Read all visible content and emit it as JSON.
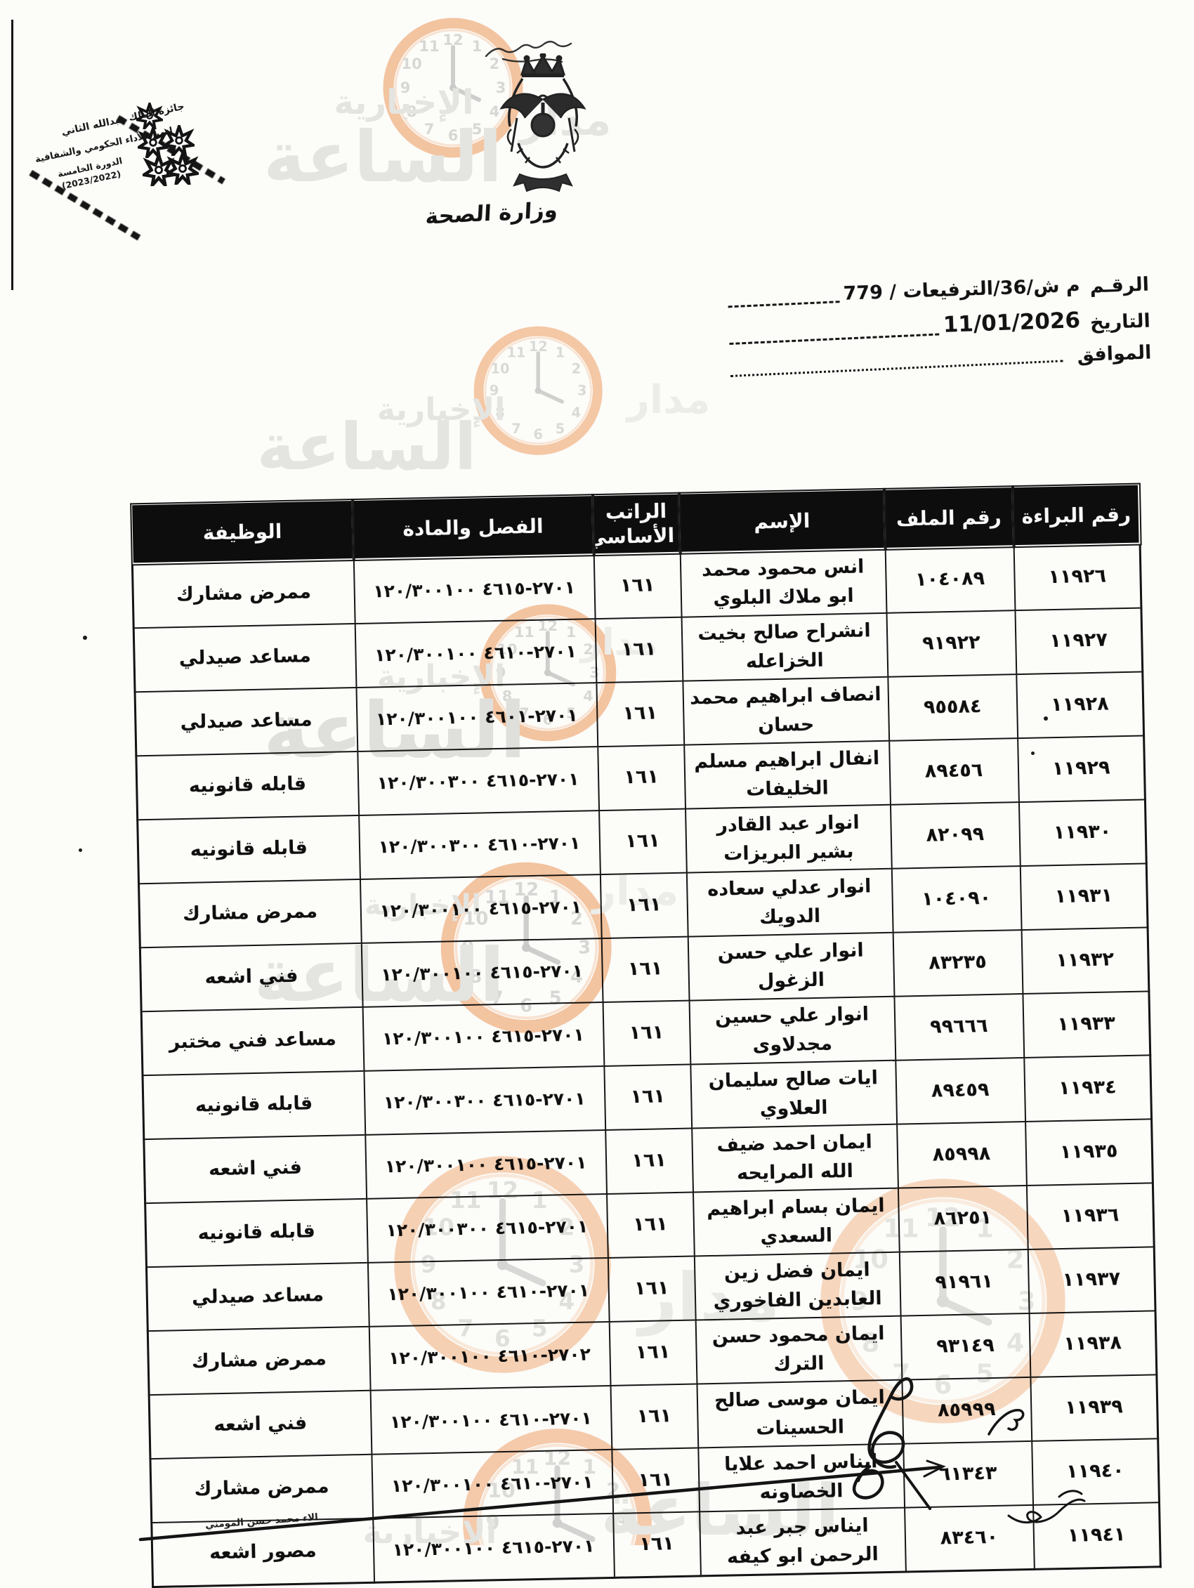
{
  "letterhead": {
    "emblem": "jordan-coat-of-arms",
    "bismillah_calligraphy": "calligraphic-header-flourish",
    "ministry_calligraphy": "وزارة الصحة",
    "award_stamp": {
      "lines": [
        "جائزة الملك عبدالله الثاني",
        "لتميز الأداء الحكومي والشفافية",
        "الدورة الخامسة",
        "(2023/2022)"
      ]
    }
  },
  "reference": {
    "number_label": "الرقـم",
    "number_value": "م ش/36/الترفيعات / 779",
    "date_label": "التاريخ",
    "date_value": "11/01/2026",
    "corresponding_label": "الموافق",
    "corresponding_value": ""
  },
  "watermark": {
    "words": [
      "مدار",
      "الساعة",
      "الإخبارية"
    ],
    "clock_numbers": [
      "12",
      "1",
      "2",
      "3",
      "4",
      "5",
      "6",
      "7",
      "8",
      "9",
      "10",
      "11"
    ],
    "ring_color": "#f6c19b",
    "text_color": "#e7e7e7"
  },
  "table": {
    "columns": [
      "رقم البراءة",
      "رقم الملف",
      "الإسم",
      "الراتب الأساسي",
      "الفصل والمادة",
      "الوظيفة"
    ],
    "rows": [
      {
        "baraa": "١١٩٢٦",
        "file": "١٠٤٠٨٩",
        "name": "انس محمود محمد ابو ملاك البلوي",
        "salary": "١٦١",
        "article": "٢٧٠١-٤٦١٥ ١٢٠/٣٠٠١٠٠",
        "job": "ممرض مشارك"
      },
      {
        "baraa": "١١٩٢٧",
        "file": "٩١٩٢٢",
        "name": "انشراح صالح بخيت الخزاعله",
        "salary": "١٦١",
        "article": "٢٧٠١-٤٦١٠ ١٢٠/٣٠٠١٠٠",
        "job": "مساعد صيدلي"
      },
      {
        "baraa": "١١٩٢٨",
        "file": "٩٥٥٨٤",
        "name": "انصاف ابراهيم محمد حسان",
        "salary": "١٦١",
        "article": "٢٧٠١-٤٦٠١ ١٢٠/٣٠٠١٠٠",
        "job": "مساعد صيدلي"
      },
      {
        "baraa": "١١٩٢٩",
        "file": "٨٩٤٥٦",
        "name": "انفال ابراهيم مسلم الخليفات",
        "salary": "١٦١",
        "article": "٢٧٠١-٤٦١٥ ١٢٠/٣٠٠٣٠٠",
        "job": "قابله قانونيه"
      },
      {
        "baraa": "١١٩٣٠",
        "file": "٨٢٠٩٩",
        "name": "انوار عبد القادر بشير البريزات",
        "salary": "١٦١",
        "article": "٢٧٠١-٤٦١٠ ١٢٠/٣٠٠٣٠٠",
        "job": "قابله قانونيه"
      },
      {
        "baraa": "١١٩٣١",
        "file": "١٠٤٠٩٠",
        "name": "انوار عدلي سعاده الدويك",
        "salary": "١٦١",
        "article": "٢٧٠١-٤٦١٥ ١٢٠/٣٠٠١٠٠",
        "job": "ممرض مشارك"
      },
      {
        "baraa": "١١٩٣٢",
        "file": "٨٣٢٣٥",
        "name": "انوار علي حسن الزغول",
        "salary": "١٦١",
        "article": "٢٧٠١-٤٦١٥ ١٢٠/٣٠٠١٠٠",
        "job": "فني اشعه"
      },
      {
        "baraa": "١١٩٣٣",
        "file": "٩٩٦٦٦",
        "name": "انوار علي حسين مجدلاوى",
        "salary": "١٦١",
        "article": "٢٧٠١-٤٦١٥ ١٢٠/٣٠٠١٠٠",
        "job": "مساعد فني مختبر"
      },
      {
        "baraa": "١١٩٣٤",
        "file": "٨٩٤٥٩",
        "name": "ايات صالح سليمان العلاوي",
        "salary": "١٦١",
        "article": "٢٧٠١-٤٦١٥ ١٢٠/٣٠٠٣٠٠",
        "job": "قابله قانونيه"
      },
      {
        "baraa": "١١٩٣٥",
        "file": "٨٥٩٩٨",
        "name": "ايمان احمد ضيف الله المرايحه",
        "salary": "١٦١",
        "article": "٢٧٠١-٤٦١٥ ١٢٠/٣٠٠١٠٠",
        "job": "فني اشعه"
      },
      {
        "baraa": "١١٩٣٦",
        "file": "٨٦٢٥١",
        "name": "ايمان بسام ابراهيم السعدي",
        "salary": "١٦١",
        "article": "٢٧٠١-٤٦١٥ ١٢٠/٣٠٠٣٠٠",
        "job": "قابله قانونيه"
      },
      {
        "baraa": "١١٩٣٧",
        "file": "٩١٩٦١",
        "name": "ايمان فضل زين العابدين الفاخوري",
        "salary": "١٦١",
        "article": "٢٧٠١-٤٦١٠ ١٢٠/٣٠٠١٠٠",
        "job": "مساعد صيدلي"
      },
      {
        "baraa": "١١٩٣٨",
        "file": "٩٣١٤٩",
        "name": "ايمان محمود حسن الترك",
        "salary": "١٦١",
        "article": "٢٧٠٢-٤٦١٠ ١٢٠/٣٠٠١٠٠",
        "job": "ممرض مشارك"
      },
      {
        "baraa": "١١٩٣٩",
        "file": "٨٥٩٩٩",
        "name": "ايمان موسى صالح الحسينات",
        "salary": "١٦١",
        "article": "٢٧٠١-٤٦١٠ ١٢٠/٣٠٠١٠٠",
        "job": "فني اشعه"
      },
      {
        "baraa": "١١٩٤٠",
        "file": "٦١٣٤٣",
        "name": "ايناس احمد علايا الخصاونه",
        "salary": "١٦١",
        "article": "٢٧٠١-٤٦١٠ ١٢٠/٣٠٠١٠٠",
        "job": "ممرض مشارك"
      },
      {
        "baraa": "١١٩٤١",
        "file": "٨٣٤٦٠",
        "name": "ايناس جبر عبد الرحمن ابو كيفه",
        "salary": "١٦١",
        "article": "٢٧٠١-٤٦١٥ ١٢٠/٣٠٠١٠٠",
        "job": "مصور اشعه"
      }
    ]
  },
  "footer": {
    "clerk_name": "الاء محمد حسن المومني",
    "signature": "handwritten-signature",
    "initials": "handwritten-initials"
  }
}
